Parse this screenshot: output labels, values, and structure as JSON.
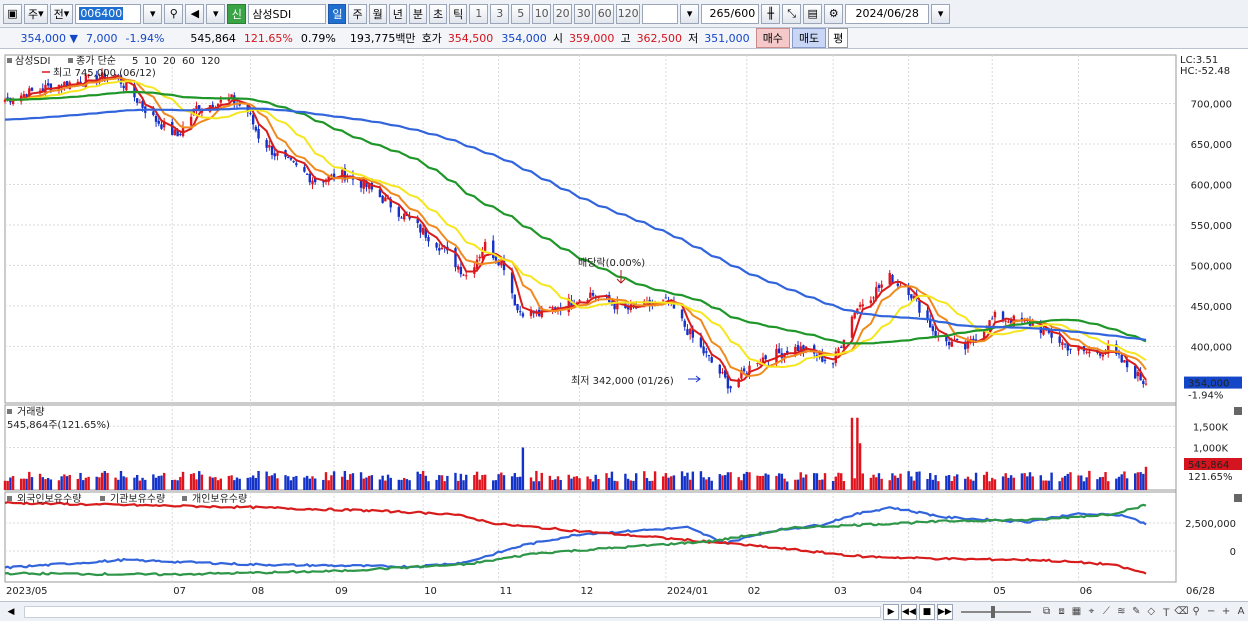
{
  "toolbar": {
    "mode_label": "주",
    "prev_label": "전",
    "code": "006400",
    "name_badge": "신",
    "name": "삼성SDI",
    "period_tabs": [
      "일",
      "주",
      "월",
      "년",
      "분",
      "초",
      "틱"
    ],
    "active_period": "일",
    "minute_options": [
      "1",
      "3",
      "5",
      "10",
      "20",
      "30",
      "60",
      "120"
    ],
    "count": "265",
    "count_total": "/600",
    "date": "2024/06/28"
  },
  "infobar": {
    "price": "354,000",
    "arrow": "▼",
    "change": "7,000",
    "change_pct": "-1.94%",
    "volume": "545,864",
    "volume_pct": "121.65%",
    "turnover": "0.79%",
    "amount": "193,775백만",
    "quote_label": "호가",
    "ask": "354,500",
    "bid": "354,000",
    "open_label": "시",
    "open": "359,000",
    "high_label": "고",
    "high": "362,500",
    "low_label": "저",
    "low": "351,000",
    "buy_label": "매수",
    "sell_label": "매도",
    "avg_label": "평"
  },
  "price_panel": {
    "legend_name": "삼성SDI",
    "legend_type": "종가 단순",
    "ma_periods": [
      "5",
      "10",
      "20",
      "60",
      "120"
    ],
    "max_label": "최고 745,000 (06/12)",
    "min_label": "최저 342,000 (01/26)",
    "dividend_label": "배당락(0.00%)",
    "lc_label": "LC:3.51",
    "hc_label": "HC:-52.48",
    "last_price_tag": "354,000",
    "last_pct_tag": "-1.94%"
  },
  "volume_panel": {
    "title": "거래량",
    "value_label": "545,864주(121.65%)",
    "tag_value": "545,864",
    "tag_pct": "121.65%"
  },
  "holding_panel": {
    "series_labels": [
      "외국인보유수량",
      "기관보유수량",
      "개인보유수량"
    ]
  },
  "colors": {
    "up": "#e0141e",
    "down": "#1432c8",
    "ma5": "#d81c1c",
    "ma10": "#f08a1e",
    "ma20": "#f5e61e",
    "ma60": "#1e9628",
    "ma120": "#3264dc",
    "foreign": "#3264dc",
    "institution": "#d81c1c",
    "individual": "#2e9648"
  },
  "chart_data": [
    {
      "type": "candlestick",
      "title": "삼성SDI",
      "y_ticks": [
        "700,000",
        "650,000",
        "600,000",
        "550,000",
        "500,000",
        "450,000",
        "400,000"
      ],
      "ylim": [
        330000,
        760000
      ],
      "x_ticks": [
        "2023/05",
        "07",
        "08",
        "09",
        "10",
        "11",
        "12",
        "2024/01",
        "02",
        "03",
        "04",
        "05",
        "06",
        "06/28"
      ],
      "close_keypoints": [
        [
          "2023-05-02",
          705000
        ],
        [
          "2023-05-20",
          722000
        ],
        [
          "2023-06-12",
          735000
        ],
        [
          "2023-06-26",
          682000
        ],
        [
          "2023-07-05",
          660000
        ],
        [
          "2023-07-12",
          695000
        ],
        [
          "2023-07-25",
          705000
        ],
        [
          "2023-07-31",
          690000
        ],
        [
          "2023-08-04",
          660000
        ],
        [
          "2023-08-10",
          638000
        ],
        [
          "2023-08-25",
          605000
        ],
        [
          "2023-09-05",
          612000
        ],
        [
          "2023-09-12",
          600000
        ],
        [
          "2023-09-22",
          575000
        ],
        [
          "2023-10-10",
          525000
        ],
        [
          "2023-10-20",
          488000
        ],
        [
          "2023-10-27",
          525000
        ],
        [
          "2023-11-03",
          500000
        ],
        [
          "2023-11-08",
          445000
        ],
        [
          "2023-11-16",
          440000
        ],
        [
          "2023-11-22",
          448000
        ],
        [
          "2023-12-05",
          465000
        ],
        [
          "2023-12-18",
          445000
        ],
        [
          "2024-01-03",
          455000
        ],
        [
          "2024-01-12",
          410000
        ],
        [
          "2024-01-26",
          350000
        ],
        [
          "2024-02-05",
          384000
        ],
        [
          "2024-02-20",
          398000
        ],
        [
          "2024-03-04",
          380000
        ],
        [
          "2024-03-12",
          445000
        ],
        [
          "2024-03-25",
          485000
        ],
        [
          "2024-04-01",
          470000
        ],
        [
          "2024-04-12",
          410000
        ],
        [
          "2024-04-22",
          398000
        ],
        [
          "2024-05-03",
          436000
        ],
        [
          "2024-05-17",
          428000
        ],
        [
          "2024-05-31",
          398000
        ],
        [
          "2024-06-07",
          392000
        ],
        [
          "2024-06-14",
          396000
        ],
        [
          "2024-06-28",
          354000
        ]
      ],
      "high": 745000,
      "low": 342000,
      "last": 354000
    },
    {
      "type": "bar",
      "title": "거래량",
      "y_ticks": [
        "1,500K",
        "1,000K"
      ],
      "ylim": [
        0,
        2000000
      ],
      "last": 545864,
      "notable": [
        [
          "2023-11-10",
          1000000
        ],
        [
          "2024-03-11",
          1700000
        ],
        [
          "2024-03-13",
          1700000
        ],
        [
          "2024-03-14",
          1100000
        ]
      ]
    },
    {
      "type": "line",
      "title": "보유수량",
      "y_ticks": [
        "2,500,000",
        "0"
      ],
      "series": [
        {
          "name": "외국인보유수량",
          "keypoints": [
            [
              "2023-05-02",
              -1500000
            ],
            [
              "2023-06-15",
              -800000
            ],
            [
              "2023-08-01",
              -1200000
            ],
            [
              "2023-10-01",
              -1400000
            ],
            [
              "2023-10-20",
              -1000000
            ],
            [
              "2023-11-10",
              500000
            ],
            [
              "2023-12-01",
              1500000
            ],
            [
              "2024-01-10",
              2100000
            ],
            [
              "2024-01-24",
              700000
            ],
            [
              "2024-02-10",
              1800000
            ],
            [
              "2024-02-28",
              2300000
            ],
            [
              "2024-03-11",
              3200000
            ],
            [
              "2024-03-25",
              3900000
            ],
            [
              "2024-04-15",
              3000000
            ],
            [
              "2024-05-15",
              2600000
            ],
            [
              "2024-06-01",
              3300000
            ],
            [
              "2024-06-20",
              3200000
            ],
            [
              "2024-06-28",
              2400000
            ]
          ]
        },
        {
          "name": "기관보유수량",
          "keypoints": [
            [
              "2023-05-02",
              4300000
            ],
            [
              "2023-08-01",
              3900000
            ],
            [
              "2023-09-15",
              3600000
            ],
            [
              "2023-10-15",
              3300000
            ],
            [
              "2023-11-01",
              2400000
            ],
            [
              "2023-12-15",
              1500000
            ],
            [
              "2024-01-24",
              700000
            ],
            [
              "2024-02-15",
              200000
            ],
            [
              "2024-03-15",
              -500000
            ],
            [
              "2024-04-15",
              -700000
            ],
            [
              "2024-05-20",
              -800000
            ],
            [
              "2024-06-15",
              -1200000
            ],
            [
              "2024-06-28",
              -2000000
            ]
          ]
        },
        {
          "name": "개인보유수량",
          "keypoints": [
            [
              "2023-05-02",
              -2000000
            ],
            [
              "2023-07-01",
              -2100000
            ],
            [
              "2023-09-01",
              -1800000
            ],
            [
              "2023-10-20",
              -1200000
            ],
            [
              "2023-11-15",
              -200000
            ],
            [
              "2023-12-15",
              300000
            ],
            [
              "2024-01-20",
              900000
            ],
            [
              "2024-02-20",
              2100000
            ],
            [
              "2024-03-20",
              2400000
            ],
            [
              "2024-04-20",
              2700000
            ],
            [
              "2024-05-20",
              2800000
            ],
            [
              "2024-06-15",
              3300000
            ],
            [
              "2024-06-28",
              4100000
            ]
          ]
        }
      ]
    }
  ]
}
